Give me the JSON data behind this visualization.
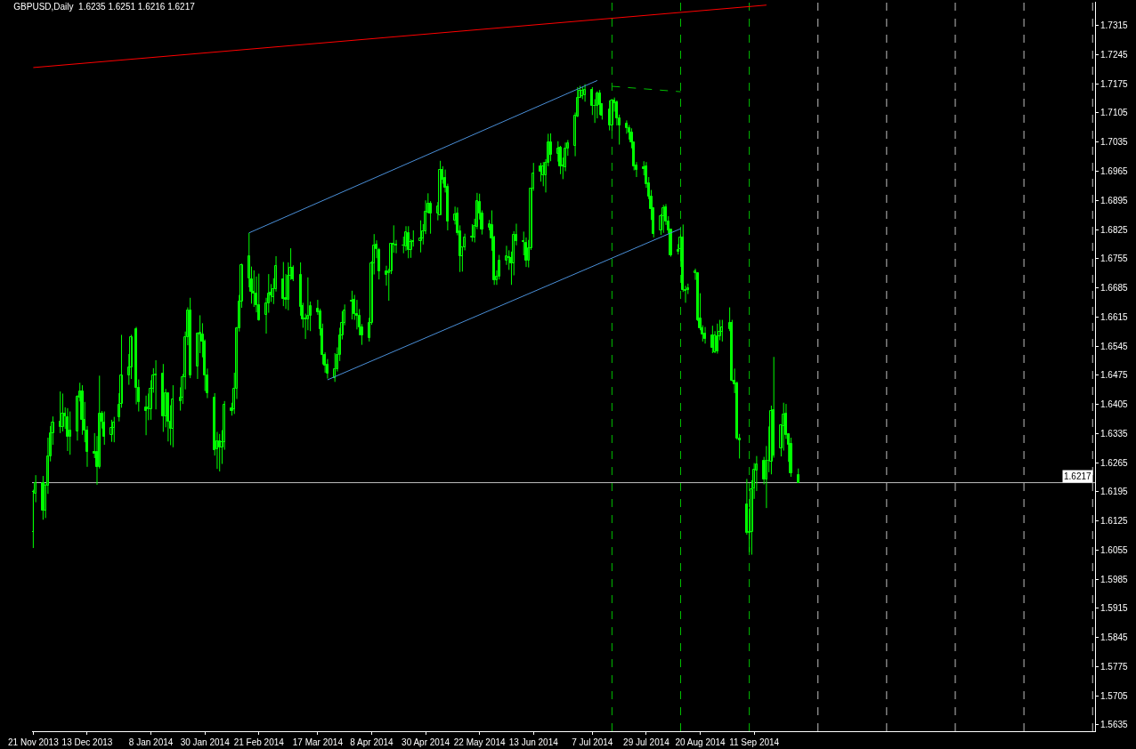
{
  "chart_data": {
    "type": "candlestick",
    "title": "GBPUSD,Daily  1.6235 1.6251 1.6216 1.6217",
    "color": "#00ff00",
    "x": [
      "2013-11-21",
      "2013-11-22",
      "2013-11-25",
      "2013-11-26",
      "2013-11-27",
      "2013-11-28",
      "2013-11-29",
      "2013-12-02",
      "2013-12-03",
      "2013-12-04",
      "2013-12-05",
      "2013-12-06",
      "2013-12-09",
      "2013-12-10",
      "2013-12-11",
      "2013-12-12",
      "2013-12-13",
      "2013-12-16",
      "2013-12-17",
      "2013-12-18",
      "2013-12-19",
      "2013-12-20",
      "2013-12-23",
      "2013-12-24",
      "2013-12-26",
      "2013-12-27",
      "2013-12-30",
      "2013-12-31",
      "2014-01-02",
      "2014-01-03",
      "2014-01-06",
      "2014-01-07",
      "2014-01-08",
      "2014-01-09",
      "2014-01-10",
      "2014-01-13",
      "2014-01-14",
      "2014-01-15",
      "2014-01-16",
      "2014-01-17",
      "2014-01-20",
      "2014-01-21",
      "2014-01-22",
      "2014-01-23",
      "2014-01-24",
      "2014-01-27",
      "2014-01-28",
      "2014-01-29",
      "2014-01-30",
      "2014-01-31",
      "2014-02-03",
      "2014-02-04",
      "2014-02-05",
      "2014-02-06",
      "2014-02-07",
      "2014-02-10",
      "2014-02-11",
      "2014-02-12",
      "2014-02-13",
      "2014-02-14",
      "2014-02-17",
      "2014-02-18",
      "2014-02-19",
      "2014-02-20",
      "2014-02-21",
      "2014-02-24",
      "2014-02-25",
      "2014-02-26",
      "2014-02-27",
      "2014-02-28",
      "2014-03-03",
      "2014-03-04",
      "2014-03-05",
      "2014-03-06",
      "2014-03-07",
      "2014-03-10",
      "2014-03-11",
      "2014-03-12",
      "2014-03-13",
      "2014-03-14",
      "2014-03-17",
      "2014-03-18",
      "2014-03-19",
      "2014-03-20",
      "2014-03-21",
      "2014-03-24",
      "2014-03-25",
      "2014-03-26",
      "2014-03-27",
      "2014-03-28",
      "2014-03-31",
      "2014-04-01",
      "2014-04-02",
      "2014-04-03",
      "2014-04-04",
      "2014-04-07",
      "2014-04-08",
      "2014-04-09",
      "2014-04-10",
      "2014-04-11",
      "2014-04-14",
      "2014-04-15",
      "2014-04-16",
      "2014-04-17",
      "2014-04-18",
      "2014-04-21",
      "2014-04-22",
      "2014-04-23",
      "2014-04-24",
      "2014-04-25",
      "2014-04-28",
      "2014-04-29",
      "2014-04-30",
      "2014-05-01",
      "2014-05-02",
      "2014-05-05",
      "2014-05-06",
      "2014-05-07",
      "2014-05-08",
      "2014-05-09",
      "2014-05-12",
      "2014-05-13",
      "2014-05-14",
      "2014-05-15",
      "2014-05-16",
      "2014-05-19",
      "2014-05-20",
      "2014-05-21",
      "2014-05-22",
      "2014-05-23",
      "2014-05-26",
      "2014-05-27",
      "2014-05-28",
      "2014-05-29",
      "2014-05-30",
      "2014-06-02",
      "2014-06-03",
      "2014-06-04",
      "2014-06-05",
      "2014-06-06",
      "2014-06-09",
      "2014-06-10",
      "2014-06-11",
      "2014-06-12",
      "2014-06-13",
      "2014-06-16",
      "2014-06-17",
      "2014-06-18",
      "2014-06-19",
      "2014-06-20",
      "2014-06-23",
      "2014-06-24",
      "2014-06-25",
      "2014-06-26",
      "2014-06-27",
      "2014-06-30",
      "2014-07-01",
      "2014-07-02",
      "2014-07-03",
      "2014-07-04",
      "2014-07-07",
      "2014-07-08",
      "2014-07-09",
      "2014-07-10",
      "2014-07-11",
      "2014-07-14",
      "2014-07-15",
      "2014-07-16",
      "2014-07-17",
      "2014-07-18",
      "2014-07-21",
      "2014-07-22",
      "2014-07-23",
      "2014-07-24",
      "2014-07-25",
      "2014-07-28",
      "2014-07-29",
      "2014-07-30",
      "2014-07-31",
      "2014-08-01",
      "2014-08-04",
      "2014-08-05",
      "2014-08-06",
      "2014-08-07",
      "2014-08-08",
      "2014-08-11",
      "2014-08-12",
      "2014-08-13",
      "2014-08-14",
      "2014-08-15",
      "2014-08-18",
      "2014-08-19",
      "2014-08-20",
      "2014-08-21",
      "2014-08-22",
      "2014-08-25",
      "2014-08-26",
      "2014-08-27",
      "2014-08-28",
      "2014-08-29",
      "2014-09-01",
      "2014-09-02",
      "2014-09-03",
      "2014-09-04",
      "2014-09-05",
      "2014-09-08",
      "2014-09-09",
      "2014-09-10",
      "2014-09-11",
      "2014-09-12",
      "2014-09-15",
      "2014-09-16",
      "2014-09-17",
      "2014-09-18",
      "2014-09-19",
      "2014-09-22",
      "2014-09-23",
      "2014-09-24",
      "2014-09-25",
      "2014-09-26",
      "2014-09-29"
    ],
    "ohlc": [
      [
        1.6099,
        1.62,
        1.606,
        1.6195
      ],
      [
        1.6191,
        1.6235,
        1.617,
        1.6216
      ],
      [
        1.6216,
        1.6233,
        1.6128,
        1.6149
      ],
      [
        1.6149,
        1.6215,
        1.6132,
        1.6209
      ],
      [
        1.6209,
        1.6325,
        1.619,
        1.628
      ],
      [
        1.628,
        1.6353,
        1.6268,
        1.6336
      ],
      [
        1.6336,
        1.6376,
        1.6308,
        1.6361
      ],
      [
        1.6364,
        1.6436,
        1.6336,
        1.635
      ],
      [
        1.635,
        1.6431,
        1.634,
        1.6382
      ],
      [
        1.6382,
        1.6398,
        1.6346,
        1.6376
      ],
      [
        1.6374,
        1.6396,
        1.6293,
        1.6328
      ],
      [
        1.6328,
        1.6388,
        1.6284,
        1.6342
      ],
      [
        1.634,
        1.6427,
        1.6318,
        1.6423
      ],
      [
        1.6421,
        1.6457,
        1.6412,
        1.6437
      ],
      [
        1.6437,
        1.6451,
        1.6332,
        1.6368
      ],
      [
        1.6368,
        1.6411,
        1.6314,
        1.6343
      ],
      [
        1.6342,
        1.6353,
        1.6255,
        1.629
      ],
      [
        1.629,
        1.6336,
        1.6276,
        1.6287
      ],
      [
        1.629,
        1.6329,
        1.6212,
        1.6255
      ],
      [
        1.6255,
        1.6474,
        1.6251,
        1.6383
      ],
      [
        1.6383,
        1.6389,
        1.6347,
        1.6364
      ],
      [
        1.6361,
        1.6388,
        1.6308,
        1.6328
      ],
      [
        1.6331,
        1.6368,
        1.6315,
        1.6349
      ],
      [
        1.6349,
        1.6375,
        1.6314,
        1.6361
      ],
      [
        1.6374,
        1.6432,
        1.6364,
        1.6405
      ],
      [
        1.6407,
        1.6572,
        1.6397,
        1.6474
      ],
      [
        1.6474,
        1.6526,
        1.6452,
        1.6493
      ],
      [
        1.6493,
        1.6572,
        1.6466,
        1.6566
      ],
      [
        1.6585,
        1.6591,
        1.6405,
        1.6444
      ],
      [
        1.6444,
        1.6465,
        1.6388,
        1.641
      ],
      [
        1.6398,
        1.6426,
        1.6331,
        1.6389
      ],
      [
        1.6393,
        1.6431,
        1.6367,
        1.6398
      ],
      [
        1.6393,
        1.6463,
        1.6368,
        1.6442
      ],
      [
        1.6442,
        1.6492,
        1.6433,
        1.6474
      ],
      [
        1.6474,
        1.6511,
        1.6393,
        1.6476
      ],
      [
        1.6478,
        1.6502,
        1.6339,
        1.6376
      ],
      [
        1.6376,
        1.6442,
        1.635,
        1.6432
      ],
      [
        1.6432,
        1.6432,
        1.6316,
        1.6364
      ],
      [
        1.6363,
        1.6403,
        1.6307,
        1.6347
      ],
      [
        1.6347,
        1.6451,
        1.6302,
        1.6416
      ],
      [
        1.6413,
        1.6446,
        1.639,
        1.6421
      ],
      [
        1.6421,
        1.6478,
        1.6406,
        1.647
      ],
      [
        1.647,
        1.658,
        1.6441,
        1.6567
      ],
      [
        1.6567,
        1.6638,
        1.6547,
        1.6631
      ],
      [
        1.6631,
        1.6661,
        1.6468,
        1.6474
      ],
      [
        1.6495,
        1.6578,
        1.6466,
        1.6575
      ],
      [
        1.6572,
        1.6619,
        1.6528,
        1.6578
      ],
      [
        1.6572,
        1.66,
        1.6518,
        1.6555
      ],
      [
        1.6555,
        1.6561,
        1.6437,
        1.6475
      ],
      [
        1.6475,
        1.6491,
        1.642,
        1.6432
      ],
      [
        1.6421,
        1.6432,
        1.6282,
        1.6295
      ],
      [
        1.6297,
        1.6339,
        1.625,
        1.6317
      ],
      [
        1.6317,
        1.6334,
        1.6244,
        1.6302
      ],
      [
        1.6302,
        1.6343,
        1.6262,
        1.6315
      ],
      [
        1.6315,
        1.6413,
        1.6296,
        1.6405
      ],
      [
        1.6396,
        1.6409,
        1.6378,
        1.6389
      ],
      [
        1.6393,
        1.6481,
        1.6382,
        1.6442
      ],
      [
        1.6442,
        1.6591,
        1.6418,
        1.6587
      ],
      [
        1.6587,
        1.6668,
        1.658,
        1.6651
      ],
      [
        1.6651,
        1.6743,
        1.6637,
        1.6739
      ],
      [
        1.6707,
        1.6817,
        1.6686,
        1.676
      ],
      [
        1.6705,
        1.6736,
        1.6647,
        1.6675
      ],
      [
        1.6676,
        1.6727,
        1.6639,
        1.6671
      ],
      [
        1.6672,
        1.6712,
        1.6626,
        1.6644
      ],
      [
        1.6644,
        1.6719,
        1.6606,
        1.6607
      ],
      [
        1.6619,
        1.6661,
        1.6575,
        1.6648
      ],
      [
        1.6648,
        1.6718,
        1.6625,
        1.6672
      ],
      [
        1.6674,
        1.6694,
        1.6651,
        1.6666
      ],
      [
        1.6663,
        1.6708,
        1.6646,
        1.6681
      ],
      [
        1.6681,
        1.6761,
        1.6676,
        1.6737
      ],
      [
        1.6706,
        1.6747,
        1.6641,
        1.6658
      ],
      [
        1.666,
        1.6718,
        1.6634,
        1.6657
      ],
      [
        1.6657,
        1.6746,
        1.6631,
        1.6715
      ],
      [
        1.6715,
        1.678,
        1.6704,
        1.6734
      ],
      [
        1.6734,
        1.6739,
        1.6701,
        1.6706
      ],
      [
        1.6716,
        1.6746,
        1.6618,
        1.6639
      ],
      [
        1.6641,
        1.6649,
        1.6589,
        1.661
      ],
      [
        1.6612,
        1.6623,
        1.6562,
        1.661
      ],
      [
        1.661,
        1.671,
        1.6583,
        1.6617
      ],
      [
        1.6617,
        1.6652,
        1.6581,
        1.6641
      ],
      [
        1.6634,
        1.6656,
        1.662,
        1.6627
      ],
      [
        1.6628,
        1.6635,
        1.657,
        1.6586
      ],
      [
        1.6586,
        1.6599,
        1.6501,
        1.6523
      ],
      [
        1.6524,
        1.653,
        1.6481,
        1.6499
      ],
      [
        1.6501,
        1.6514,
        1.6467,
        1.6478
      ],
      [
        1.6468,
        1.6528,
        1.6459,
        1.649
      ],
      [
        1.649,
        1.6542,
        1.6484,
        1.6524
      ],
      [
        1.6524,
        1.6589,
        1.6509,
        1.657
      ],
      [
        1.657,
        1.6629,
        1.6561,
        1.66
      ],
      [
        1.66,
        1.6645,
        1.6595,
        1.6631
      ],
      [
        1.6655,
        1.6678,
        1.6609,
        1.6651
      ],
      [
        1.6657,
        1.6668,
        1.6608,
        1.6623
      ],
      [
        1.6623,
        1.6656,
        1.6585,
        1.6618
      ],
      [
        1.6618,
        1.6634,
        1.6571,
        1.6591
      ],
      [
        1.6591,
        1.6598,
        1.6548,
        1.657
      ],
      [
        1.6565,
        1.6613,
        1.6556,
        1.66
      ],
      [
        1.66,
        1.6749,
        1.6596,
        1.6743
      ],
      [
        1.6743,
        1.6814,
        1.6717,
        1.6787
      ],
      [
        1.6789,
        1.6799,
        1.6756,
        1.6779
      ],
      [
        1.6776,
        1.6781,
        1.6705,
        1.6724
      ],
      [
        1.6724,
        1.6738,
        1.669,
        1.6716
      ],
      [
        1.672,
        1.6731,
        1.6654,
        1.6724
      ],
      [
        1.6724,
        1.6793,
        1.6718,
        1.6791
      ],
      [
        1.6791,
        1.6835,
        1.6769,
        1.6788
      ],
      [
        1.6788,
        1.68,
        1.6768,
        1.6786
      ],
      [
        1.6787,
        1.6808,
        1.6768,
        1.6786
      ],
      [
        1.6784,
        1.6833,
        1.6774,
        1.6819
      ],
      [
        1.6816,
        1.6833,
        1.6756,
        1.6775
      ],
      [
        1.6775,
        1.6802,
        1.6757,
        1.6796
      ],
      [
        1.6796,
        1.6823,
        1.6784,
        1.6798
      ],
      [
        1.6798,
        1.6847,
        1.677,
        1.6803
      ],
      [
        1.6803,
        1.6838,
        1.6789,
        1.6821
      ],
      [
        1.6821,
        1.6895,
        1.6814,
        1.6867
      ],
      [
        1.6866,
        1.6912,
        1.6864,
        1.6887
      ],
      [
        1.6887,
        1.6893,
        1.6815,
        1.6864
      ],
      [
        1.6864,
        1.6891,
        1.6847,
        1.688
      ],
      [
        1.686,
        1.699,
        1.686,
        1.6969
      ],
      [
        1.6969,
        1.6977,
        1.6935,
        1.6945
      ],
      [
        1.6948,
        1.6969,
        1.6914,
        1.6926
      ],
      [
        1.6927,
        1.6935,
        1.6823,
        1.6844
      ],
      [
        1.6847,
        1.688,
        1.6837,
        1.6861
      ],
      [
        1.6863,
        1.6878,
        1.6811,
        1.6817
      ],
      [
        1.682,
        1.6835,
        1.6723,
        1.676
      ],
      [
        1.676,
        1.6783,
        1.6724,
        1.6783
      ],
      [
        1.6783,
        1.6815,
        1.6775,
        1.6805
      ],
      [
        1.6805,
        1.6838,
        1.6796,
        1.6808
      ],
      [
        1.6806,
        1.6851,
        1.6794,
        1.6833
      ],
      [
        1.6831,
        1.6913,
        1.6826,
        1.6894
      ],
      [
        1.6892,
        1.6911,
        1.6849,
        1.6863
      ],
      [
        1.6863,
        1.6871,
        1.6813,
        1.6824
      ],
      [
        1.6829,
        1.6848,
        1.6823,
        1.6837
      ],
      [
        1.6836,
        1.6871,
        1.6774,
        1.6803
      ],
      [
        1.6806,
        1.681,
        1.6692,
        1.6704
      ],
      [
        1.6704,
        1.6727,
        1.6692,
        1.6711
      ],
      [
        1.6711,
        1.6764,
        1.6705,
        1.675
      ],
      [
        1.675,
        1.6786,
        1.674,
        1.676
      ],
      [
        1.6758,
        1.6775,
        1.6728,
        1.6756
      ],
      [
        1.6756,
        1.6772,
        1.6692,
        1.6744
      ],
      [
        1.6744,
        1.6821,
        1.6715,
        1.6813
      ],
      [
        1.6812,
        1.6839,
        1.6787,
        1.6797
      ],
      [
        1.6797,
        1.682,
        1.6763,
        1.6795
      ],
      [
        1.6794,
        1.6806,
        1.6735,
        1.675
      ],
      [
        1.675,
        1.68,
        1.6734,
        1.6781
      ],
      [
        1.6781,
        1.6925,
        1.6776,
        1.6923
      ],
      [
        1.6923,
        1.6985,
        1.6918,
        1.696
      ],
      [
        1.6977,
        1.6985,
        1.694,
        1.6963
      ],
      [
        1.6955,
        1.6987,
        1.6929,
        1.6977
      ],
      [
        1.6955,
        1.6994,
        1.6914,
        1.6985
      ],
      [
        1.6986,
        1.7055,
        1.6977,
        1.7034
      ],
      [
        1.7034,
        1.7056,
        1.6989,
        1.7005
      ],
      [
        1.7007,
        1.7037,
        1.6988,
        1.702
      ],
      [
        1.7022,
        1.7026,
        1.6958,
        1.6977
      ],
      [
        1.6979,
        1.6998,
        1.6946,
        1.6976
      ],
      [
        1.6974,
        1.7034,
        1.6965,
        1.702
      ],
      [
        1.702,
        1.704,
        1.7002,
        1.7032
      ],
      [
        1.7025,
        1.7106,
        1.7001,
        1.7099
      ],
      [
        1.7097,
        1.7167,
        1.7095,
        1.7142
      ],
      [
        1.7142,
        1.717,
        1.7142,
        1.7158
      ],
      [
        1.7145,
        1.7167,
        1.7138,
        1.7158
      ],
      [
        1.7147,
        1.7174,
        1.7132,
        1.7161
      ],
      [
        1.716,
        1.7167,
        1.71,
        1.7121
      ],
      [
        1.7123,
        1.7138,
        1.7081,
        1.7121
      ],
      [
        1.7123,
        1.7157,
        1.7092,
        1.7151
      ],
      [
        1.7151,
        1.716,
        1.71,
        1.7124
      ],
      [
        1.7126,
        1.7128,
        1.7089,
        1.7099
      ],
      [
        1.7114,
        1.7135,
        1.7063,
        1.7075
      ],
      [
        1.7076,
        1.7137,
        1.7062,
        1.7135
      ],
      [
        1.7135,
        1.7142,
        1.7108,
        1.7128
      ],
      [
        1.7131,
        1.7135,
        1.7075,
        1.7092
      ],
      [
        1.7092,
        1.7101,
        1.7029,
        1.7075
      ],
      [
        1.708,
        1.7087,
        1.7055,
        1.7068
      ],
      [
        1.7068,
        1.7076,
        1.7041,
        1.7057
      ],
      [
        1.7057,
        1.7068,
        1.702,
        1.7034
      ],
      [
        1.7034,
        1.7034,
        1.6967,
        1.6977
      ],
      [
        1.6979,
        1.6987,
        1.6951,
        1.6969
      ],
      [
        1.6975,
        1.6989,
        1.6955,
        1.697
      ],
      [
        1.6977,
        1.6987,
        1.6925,
        1.6933
      ],
      [
        1.6937,
        1.6951,
        1.6898,
        1.6905
      ],
      [
        1.6905,
        1.692,
        1.6848,
        1.6875
      ],
      [
        1.6877,
        1.6877,
        1.6806,
        1.6815
      ],
      [
        1.6823,
        1.6862,
        1.6812,
        1.6857
      ],
      [
        1.6857,
        1.6884,
        1.6817,
        1.6877
      ],
      [
        1.6878,
        1.6886,
        1.6836,
        1.6845
      ],
      [
        1.6845,
        1.6857,
        1.6815,
        1.6822
      ],
      [
        1.6824,
        1.6826,
        1.676,
        1.6764
      ],
      [
        1.6776,
        1.679,
        1.6765,
        1.6772
      ],
      [
        1.6779,
        1.6813,
        1.6749,
        1.6805
      ],
      [
        1.6805,
        1.6837,
        1.6675,
        1.668
      ],
      [
        1.668,
        1.669,
        1.6649,
        1.6678
      ],
      [
        1.6679,
        1.6695,
        1.667,
        1.6684
      ],
      [
        1.672,
        1.6731,
        1.6704,
        1.6724
      ],
      [
        1.672,
        1.672,
        1.6605,
        1.6608
      ],
      [
        1.6612,
        1.6672,
        1.6583,
        1.6588
      ],
      [
        1.6587,
        1.6595,
        1.6556,
        1.6573
      ],
      [
        1.6574,
        1.6591,
        1.6551,
        1.6562
      ],
      [
        1.6571,
        1.6594,
        1.6528,
        1.6541
      ],
      [
        1.653,
        1.6581,
        1.6528,
        1.6571
      ],
      [
        1.6569,
        1.6599,
        1.6527,
        1.6532
      ],
      [
        1.6568,
        1.6608,
        1.6559,
        1.658
      ],
      [
        1.658,
        1.6608,
        1.6556,
        1.6591
      ],
      [
        1.6586,
        1.6638,
        1.6581,
        1.66
      ],
      [
        1.6601,
        1.6608,
        1.646,
        1.6461
      ],
      [
        1.6461,
        1.6491,
        1.6432,
        1.6454
      ],
      [
        1.6455,
        1.646,
        1.632,
        1.6323
      ],
      [
        1.6323,
        1.6334,
        1.6275,
        1.6318
      ],
      [
        1.6164,
        1.6226,
        1.6092,
        1.6096
      ],
      [
        1.6099,
        1.6155,
        1.605,
        1.6097
      ],
      [
        1.6098,
        1.6223,
        1.6044,
        1.6202
      ],
      [
        1.6204,
        1.6264,
        1.6178,
        1.6249
      ],
      [
        1.6246,
        1.6281,
        1.6197,
        1.6262
      ],
      [
        1.627,
        1.6279,
        1.6213,
        1.6225
      ],
      [
        1.6225,
        1.6305,
        1.6156,
        1.627
      ],
      [
        1.627,
        1.6352,
        1.6242,
        1.6269
      ],
      [
        1.6268,
        1.6402,
        1.6237,
        1.6389
      ],
      [
        1.6391,
        1.6519,
        1.6277,
        1.6283
      ],
      [
        1.6299,
        1.6357,
        1.628,
        1.6355
      ],
      [
        1.6353,
        1.6409,
        1.6294,
        1.6381
      ],
      [
        1.6382,
        1.6406,
        1.6322,
        1.6331
      ],
      [
        1.6334,
        1.6334,
        1.6267,
        1.6308
      ],
      [
        1.6311,
        1.6325,
        1.6231,
        1.6239
      ],
      [
        1.6235,
        1.6251,
        1.6216,
        1.6217
      ]
    ],
    "series": [
      {
        "type": "line",
        "x": [
          "2013-11-21",
          "2014-09-16"
        ],
        "values": [
          1.7214,
          1.7364
        ],
        "color": "#ff0000"
      },
      {
        "type": "line",
        "x": [
          "2014-02-17",
          "2014-07-09"
        ],
        "values": [
          1.6817,
          1.7183
        ],
        "color": "#4a8fd8"
      },
      {
        "type": "line",
        "x": [
          "2014-03-21",
          "2014-08-12"
        ],
        "values": [
          1.6464,
          1.6827
        ],
        "color": "#4a8fd8"
      },
      {
        "type": "line",
        "x": [
          "2014-07-15",
          "2014-08-12"
        ],
        "values": [
          1.7169,
          1.7156
        ],
        "color": "#00c000",
        "line_style": "dashed"
      }
    ],
    "ref_lines": [
      {
        "axis": "y",
        "value": 1.6217,
        "label": "1.6217",
        "color": "#c0c0c0"
      },
      {
        "axis": "x",
        "value": "2014-07-15",
        "color": "#00c000",
        "line_style": "dashed"
      },
      {
        "axis": "x",
        "value": "2014-08-12",
        "color": "#00c000",
        "line_style": "dashed"
      },
      {
        "axis": "x",
        "value": "2014-09-09",
        "color": "#00c000",
        "line_style": "dashed"
      },
      {
        "axis": "x",
        "value": "2014-10-07",
        "color": "#c0c0c0",
        "line_style": "dashed"
      },
      {
        "axis": "x",
        "value": "2014-11-04",
        "color": "#c0c0c0",
        "line_style": "dashed"
      },
      {
        "axis": "x",
        "value": "2014-12-02",
        "color": "#c0c0c0",
        "line_style": "dashed"
      },
      {
        "axis": "x",
        "value": "2014-12-30",
        "color": "#c0c0c0",
        "line_style": "dashed"
      },
      {
        "axis": "x",
        "value": "2015-01-27",
        "color": "#c0c0c0",
        "line_style": "dashed"
      }
    ],
    "xlim": [
      "2013-11-20T12:00",
      "2015-01-28"
    ],
    "xticks": [
      {
        "value": "2013-11-21",
        "label": "21 Nov 2013"
      },
      {
        "value": "2013-12-13",
        "label": "13 Dec 2013"
      },
      {
        "value": "2014-01-08",
        "label": "8 Jan 2014"
      },
      {
        "value": "2014-01-30",
        "label": "30 Jan 2014"
      },
      {
        "value": "2014-02-21",
        "label": "21 Feb 2014"
      },
      {
        "value": "2014-03-17",
        "label": "17 Mar 2014"
      },
      {
        "value": "2014-04-08",
        "label": "8 Apr 2014"
      },
      {
        "value": "2014-04-30",
        "label": "30 Apr 2014"
      },
      {
        "value": "2014-05-22",
        "label": "22 May 2014"
      },
      {
        "value": "2014-06-13",
        "label": "13 Jun 2014"
      },
      {
        "value": "2014-07-07",
        "label": "7 Jul 2014"
      },
      {
        "value": "2014-07-29",
        "label": "29 Jul 2014"
      },
      {
        "value": "2014-08-20",
        "label": "20 Aug 2014"
      },
      {
        "value": "2014-09-11",
        "label": "11 Sep 2014"
      }
    ],
    "ylim": [
      1.562,
      1.7372
    ],
    "yticks": [
      1.7315,
      1.7245,
      1.7175,
      1.7105,
      1.7035,
      1.6965,
      1.6895,
      1.6825,
      1.6755,
      1.6685,
      1.6615,
      1.6545,
      1.6475,
      1.6405,
      1.6335,
      1.6265,
      1.6195,
      1.6125,
      1.6055,
      1.5985,
      1.5915,
      1.5845,
      1.5775,
      1.5705,
      1.5635
    ]
  }
}
